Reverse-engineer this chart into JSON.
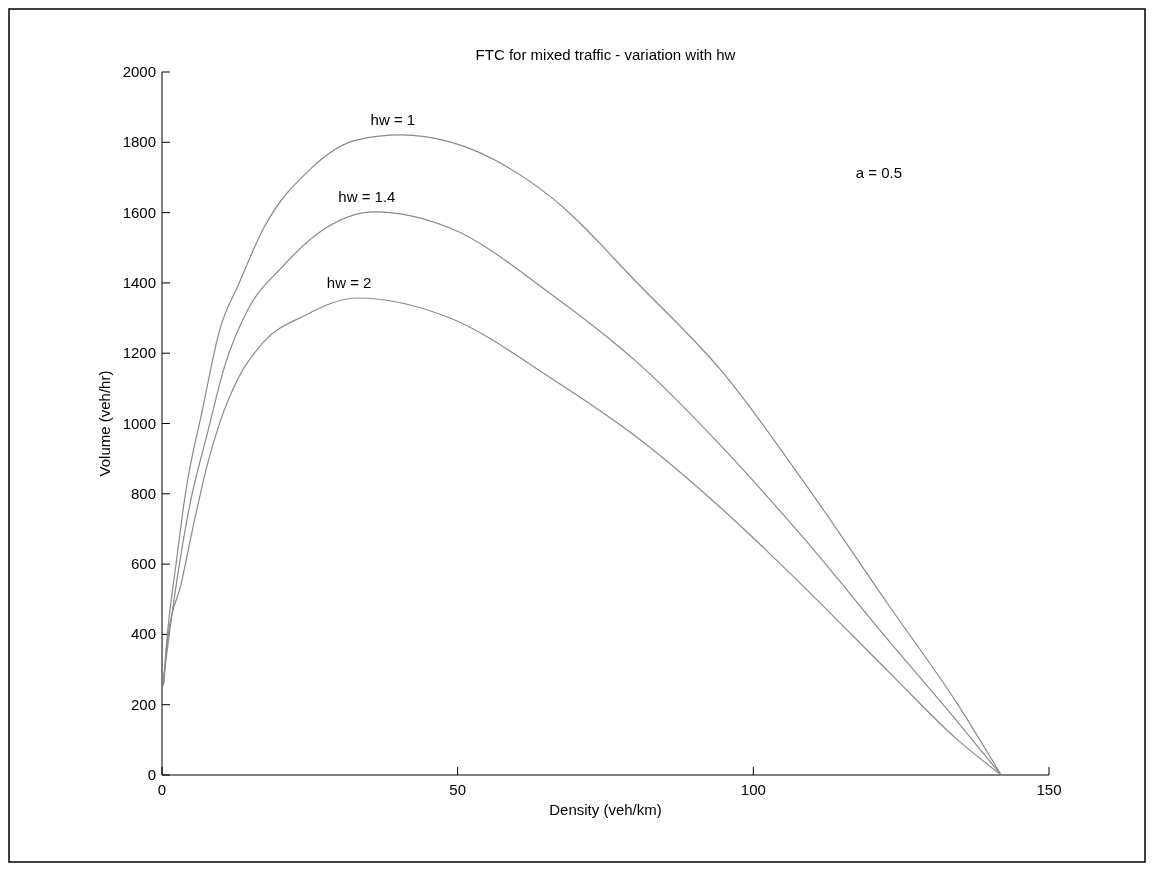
{
  "chart_data": {
    "type": "line",
    "title": "FTC for mixed traffic - variation with hw",
    "xlabel": "Density (veh/km)",
    "ylabel": "Volume (veh/hr)",
    "xlim": [
      0,
      150
    ],
    "ylim": [
      0,
      2000
    ],
    "xticks": [
      0,
      50,
      100,
      150
    ],
    "yticks": [
      0,
      200,
      400,
      600,
      800,
      1000,
      1200,
      1400,
      1600,
      1800,
      2000
    ],
    "grid": false,
    "annotations": [
      "a = 0.5"
    ],
    "series": [
      {
        "name": "hw = 1",
        "color": "#8a8a8a",
        "x": [
          0.2,
          1,
          2.4,
          3.9,
          6.9,
          9.8,
          12.9,
          17.2,
          24.9,
          33,
          40.4,
          48.7,
          65.8,
          80.7,
          94.9,
          108.2,
          123.1,
          134.4,
          141.9
        ],
        "values": [
          253,
          415,
          603,
          794,
          1044,
          1269,
          1394,
          1556,
          1721,
          1807,
          1821,
          1801,
          1644,
          1394,
          1144,
          842,
          478,
          205,
          0
        ]
      },
      {
        "name": "hw = 1.4",
        "color": "#8a8a8a",
        "x": [
          0.3,
          2.4,
          4.7,
          7.6,
          10.7,
          14.4,
          20.3,
          27.7,
          36,
          48.7,
          65.8,
          80.7,
          94.9,
          108.2,
          123.1,
          134.4,
          141.9
        ],
        "values": [
          280,
          541,
          768,
          967,
          1169,
          1320,
          1445,
          1556,
          1602,
          1556,
          1368,
          1169,
          930,
          680,
          378,
          154,
          0
        ]
      },
      {
        "name": "hw = 2",
        "color": "#8a8a8a",
        "x": [
          0.3,
          1,
          3.2,
          5.4,
          7.6,
          9.8,
          12.9,
          17.2,
          24,
          33,
          48.7,
          65.8,
          80.7,
          94.9,
          108.2,
          123.1,
          134.4,
          141.9
        ],
        "values": [
          260,
          393,
          541,
          717,
          879,
          1004,
          1129,
          1232,
          1306,
          1357,
          1300,
          1129,
          956,
          754,
          541,
          290,
          102,
          0
        ]
      }
    ]
  }
}
